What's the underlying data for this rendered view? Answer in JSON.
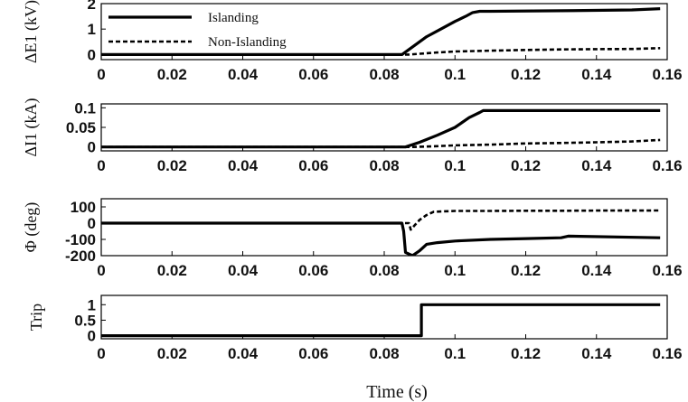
{
  "chart_data": [
    {
      "type": "line",
      "ylabel": "ΔE1 (kV)",
      "xlim": [
        0,
        0.16
      ],
      "ylim": [
        -0.2,
        2
      ],
      "yticks": [
        0,
        1,
        2
      ],
      "xticks": [
        0,
        0.02,
        0.04,
        0.06,
        0.08,
        0.1,
        0.12,
        0.14,
        0.16
      ],
      "legend": "top-left",
      "series": [
        {
          "name": "Islanding",
          "style": "solid",
          "x": [
            0,
            0.085,
            0.088,
            0.092,
            0.096,
            0.1,
            0.103,
            0.105,
            0.107,
            0.11,
            0.13,
            0.15,
            0.158
          ],
          "y": [
            0,
            0,
            0.3,
            0.7,
            1.0,
            1.3,
            1.5,
            1.65,
            1.7,
            1.7,
            1.72,
            1.75,
            1.8
          ]
        },
        {
          "name": "Non-Islanding",
          "style": "dashed",
          "x": [
            0,
            0.087,
            0.09,
            0.095,
            0.1,
            0.11,
            0.12,
            0.13,
            0.14,
            0.15,
            0.158
          ],
          "y": [
            0,
            0,
            0.03,
            0.08,
            0.12,
            0.15,
            0.18,
            0.2,
            0.21,
            0.22,
            0.25
          ]
        }
      ]
    },
    {
      "type": "line",
      "ylabel": "ΔI1 (kA)",
      "xlim": [
        0,
        0.16
      ],
      "ylim": [
        -0.01,
        0.11
      ],
      "yticks": [
        0,
        0.05,
        0.1
      ],
      "xticks": [
        0,
        0.02,
        0.04,
        0.06,
        0.08,
        0.1,
        0.12,
        0.14,
        0.16
      ],
      "series": [
        {
          "name": "Islanding",
          "style": "solid",
          "x": [
            0,
            0.086,
            0.09,
            0.095,
            0.1,
            0.104,
            0.107,
            0.108,
            0.158
          ],
          "y": [
            0,
            0,
            0.012,
            0.03,
            0.05,
            0.075,
            0.088,
            0.093,
            0.093
          ]
        },
        {
          "name": "Non-Islanding",
          "style": "dashed",
          "x": [
            0,
            0.088,
            0.095,
            0.1,
            0.11,
            0.12,
            0.13,
            0.14,
            0.15,
            0.158
          ],
          "y": [
            0,
            0,
            0.002,
            0.004,
            0.006,
            0.009,
            0.01,
            0.012,
            0.014,
            0.018
          ]
        }
      ]
    },
    {
      "type": "line",
      "ylabel": "Φ (deg)",
      "xlim": [
        0,
        0.16
      ],
      "ylim": [
        -200,
        150
      ],
      "yticks": [
        100,
        0,
        -100,
        -200
      ],
      "xticks": [
        0,
        0.02,
        0.04,
        0.06,
        0.08,
        0.1,
        0.12,
        0.14,
        0.16
      ],
      "series": [
        {
          "name": "Islanding",
          "style": "solid",
          "x": [
            0,
            0.085,
            0.0855,
            0.086,
            0.088,
            0.09,
            0.092,
            0.095,
            0.1,
            0.11,
            0.12,
            0.13,
            0.132,
            0.158
          ],
          "y": [
            0,
            0,
            -50,
            -180,
            -200,
            -170,
            -130,
            -120,
            -110,
            -100,
            -95,
            -90,
            -80,
            -90
          ]
        },
        {
          "name": "Non-Islanding",
          "style": "dashed",
          "x": [
            0,
            0.087,
            0.0875,
            0.09,
            0.092,
            0.094,
            0.1,
            0.11,
            0.12,
            0.13,
            0.14,
            0.158
          ],
          "y": [
            0,
            0,
            -40,
            20,
            50,
            70,
            75,
            75,
            76,
            76,
            77,
            78
          ]
        }
      ]
    },
    {
      "type": "line",
      "ylabel": "Trip",
      "xlabel": "Time (s)",
      "xlim": [
        0,
        0.16
      ],
      "ylim": [
        -0.1,
        1.3
      ],
      "yticks": [
        0,
        0.5,
        1
      ],
      "xticks": [
        0,
        0.02,
        0.04,
        0.06,
        0.08,
        0.1,
        0.12,
        0.14,
        0.16
      ],
      "series": [
        {
          "name": "Islanding",
          "style": "solid",
          "x": [
            0,
            0.0905,
            0.0905,
            0.158
          ],
          "y": [
            0,
            0,
            1,
            1
          ]
        }
      ]
    }
  ]
}
